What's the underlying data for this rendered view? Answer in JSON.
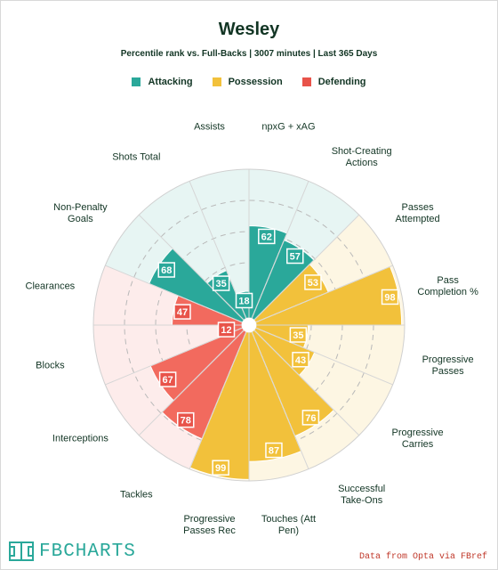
{
  "header": {
    "title": "Wesley",
    "subtitle": "Percentile rank vs. Full-Backs | 3007 minutes | Last 365 Days"
  },
  "legend": [
    {
      "label": "Attacking",
      "color": "#2aa89a"
    },
    {
      "label": "Possession",
      "color": "#f2c13b"
    },
    {
      "label": "Defending",
      "color": "#e8534a"
    }
  ],
  "footer": {
    "logo_text": "FBCHARTS",
    "source": "Data from Opta via FBref"
  },
  "chart_data": {
    "type": "radar",
    "scale_max": 100,
    "grid": "dashed rings",
    "categories": [
      {
        "label": "npxG + xAG",
        "value": 62,
        "group": "Attacking"
      },
      {
        "label": "Shot-Creating\nActions",
        "value": 57,
        "group": "Attacking"
      },
      {
        "label": "Passes\nAttempted",
        "value": 53,
        "group": "Possession"
      },
      {
        "label": "Pass\nCompletion %",
        "value": 98,
        "group": "Possession"
      },
      {
        "label": "Progressive\nPasses",
        "value": 35,
        "group": "Possession"
      },
      {
        "label": "Progressive\nCarries",
        "value": 43,
        "group": "Possession"
      },
      {
        "label": "Successful\nTake-Ons",
        "value": 76,
        "group": "Possession"
      },
      {
        "label": "Touches (Att\nPen)",
        "value": 87,
        "group": "Possession"
      },
      {
        "label": "Progressive\nPasses Rec",
        "value": 99,
        "group": "Possession"
      },
      {
        "label": "Tackles",
        "value": 78,
        "group": "Defending"
      },
      {
        "label": "Interceptions",
        "value": 67,
        "group": "Defending"
      },
      {
        "label": "Blocks",
        "value": 12,
        "group": "Defending"
      },
      {
        "label": "Clearances",
        "value": 47,
        "group": "Defending"
      },
      {
        "label": "Non-Penalty\nGoals",
        "value": 68,
        "group": "Attacking"
      },
      {
        "label": "Shots Total",
        "value": 35,
        "group": "Attacking"
      },
      {
        "label": "Assists",
        "value": 18,
        "group": "Attacking"
      }
    ],
    "group_colors": {
      "Attacking": {
        "fill": "#2aa89a",
        "bg": "#e7f5f3",
        "label_fill": "#2aa89a"
      },
      "Possession": {
        "fill": "#f2c13b",
        "bg": "#fdf6e3",
        "label_fill": "#f2c13b"
      },
      "Defending": {
        "fill": "#f26a5e",
        "bg": "#fdeceb",
        "label_fill": "#e8534a"
      }
    }
  }
}
